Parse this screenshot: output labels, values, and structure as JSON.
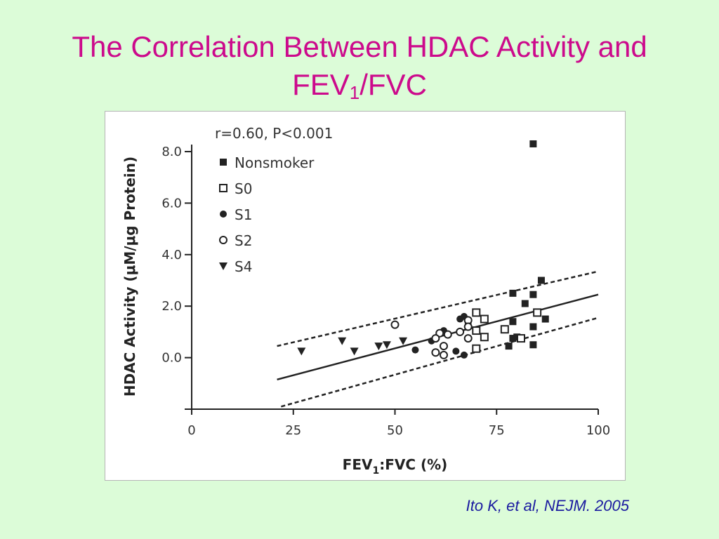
{
  "slide": {
    "title_line1": "The Correlation Between HDAC Activity and",
    "title_line2_main": "FEV",
    "title_line2_sub": "1",
    "title_line2_rest": "/FVC",
    "citation": "Ito K, et al, NEJM. 2005"
  },
  "chart_data": {
    "type": "scatter",
    "annotation": "r=0.60,  P<0.001",
    "xlabel_main": "FEV",
    "xlabel_sub": "1",
    "xlabel_rest": ":FVC (%)",
    "ylabel": "HDAC Activity (μM/μg Protein)",
    "xlim": [
      0,
      100
    ],
    "ylim": [
      -2.0,
      8.0
    ],
    "xticks": [
      {
        "value": 0,
        "label": "0"
      },
      {
        "value": 25,
        "label": "25"
      },
      {
        "value": 50,
        "label": "50"
      },
      {
        "value": 75,
        "label": "75"
      },
      {
        "value": 100,
        "label": "100"
      }
    ],
    "yticks": [
      {
        "value": 0.0,
        "label": "0.0"
      },
      {
        "value": 2.0,
        "label": "2.0"
      },
      {
        "value": 4.0,
        "label": "4.0"
      },
      {
        "value": 6.0,
        "label": "6.0"
      },
      {
        "value": 8.0,
        "label": "8.0"
      }
    ],
    "grid": false,
    "legend_position": "top-left",
    "series": [
      {
        "name": "Nonsmoker",
        "marker": "square-filled",
        "points": [
          [
            84,
            8.3
          ],
          [
            86,
            3.0
          ],
          [
            79,
            2.5
          ],
          [
            84,
            2.45
          ],
          [
            82,
            2.1
          ],
          [
            87,
            1.5
          ],
          [
            79,
            1.4
          ],
          [
            84,
            1.2
          ],
          [
            80,
            0.8
          ],
          [
            79,
            0.75
          ],
          [
            78,
            0.45
          ],
          [
            84,
            0.5
          ]
        ]
      },
      {
        "name": "S0",
        "marker": "square-open",
        "points": [
          [
            70,
            1.75
          ],
          [
            85,
            1.75
          ],
          [
            72,
            1.5
          ],
          [
            77,
            1.1
          ],
          [
            70,
            1.05
          ],
          [
            81,
            0.75
          ],
          [
            72,
            0.8
          ],
          [
            70,
            0.35
          ]
        ]
      },
      {
        "name": "S1",
        "marker": "circle-filled",
        "points": [
          [
            67,
            1.6
          ],
          [
            66,
            1.5
          ],
          [
            68,
            1.35
          ],
          [
            62,
            1.05
          ],
          [
            59,
            0.65
          ],
          [
            55,
            0.3
          ],
          [
            65,
            0.25
          ],
          [
            67,
            0.1
          ]
        ]
      },
      {
        "name": "S2",
        "marker": "circle-open",
        "points": [
          [
            50,
            1.28
          ],
          [
            68,
            1.45
          ],
          [
            68,
            1.2
          ],
          [
            61,
            0.95
          ],
          [
            66,
            1.0
          ],
          [
            63,
            0.9
          ],
          [
            60,
            0.75
          ],
          [
            68,
            0.75
          ],
          [
            62,
            0.45
          ],
          [
            60,
            0.2
          ],
          [
            62,
            0.1
          ]
        ]
      },
      {
        "name": "S4",
        "marker": "triangle-filled",
        "points": [
          [
            27,
            0.25
          ],
          [
            37,
            0.65
          ],
          [
            40,
            0.25
          ],
          [
            46,
            0.45
          ],
          [
            48,
            0.5
          ],
          [
            52,
            0.65
          ]
        ]
      }
    ],
    "regression": {
      "x": [
        21,
        100
      ],
      "y": [
        -0.85,
        2.45
      ]
    },
    "confidence_upper": {
      "x": [
        21,
        100
      ],
      "y": [
        0.45,
        3.35
      ]
    },
    "confidence_lower": {
      "x": [
        22,
        100
      ],
      "y": [
        -1.9,
        1.55
      ]
    }
  }
}
